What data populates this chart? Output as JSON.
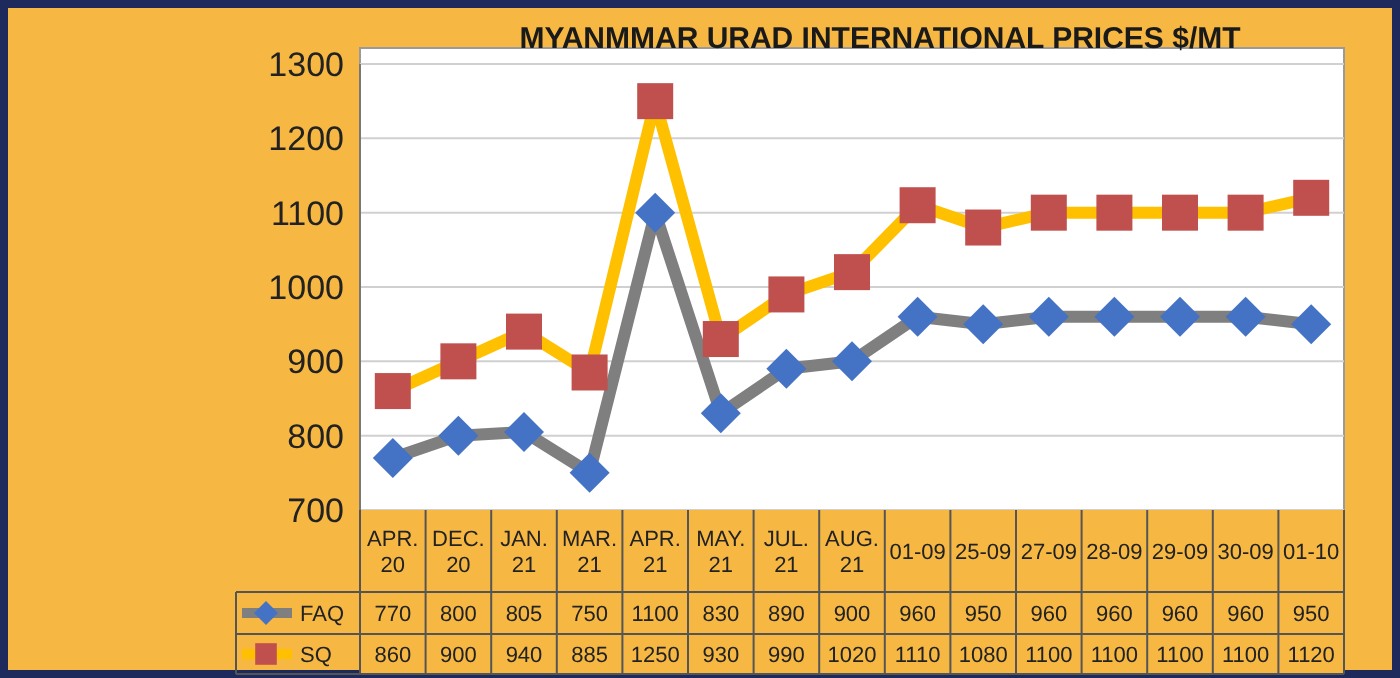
{
  "chart_data": {
    "type": "line",
    "title": "MYANMMAR URAD INTERNATIONAL PRICES $/MT",
    "categories": [
      "APR. 20",
      "DEC. 20",
      "JAN. 21",
      "MAR. 21",
      "APR. 21",
      "MAY. 21",
      "JUL. 21",
      "AUG. 21",
      "01-09",
      "25-09",
      "27-09",
      "28-09",
      "29-09",
      "30-09",
      "01-10"
    ],
    "series": [
      {
        "name": "FAQ",
        "color": "#7f7f7f",
        "marker": "diamond",
        "values": [
          770,
          800,
          805,
          750,
          1100,
          830,
          890,
          900,
          960,
          950,
          960,
          960,
          960,
          960,
          950
        ]
      },
      {
        "name": "SQ",
        "color": "#ffc000",
        "marker": "square",
        "values": [
          860,
          900,
          940,
          885,
          1250,
          930,
          990,
          1020,
          1110,
          1080,
          1100,
          1100,
          1100,
          1100,
          1120
        ]
      }
    ],
    "ylim": [
      700,
      1300
    ],
    "yticks": [
      700,
      800,
      900,
      1000,
      1100,
      1200,
      1300
    ],
    "grid": "y",
    "data_labels": true,
    "legend": "bottom"
  }
}
